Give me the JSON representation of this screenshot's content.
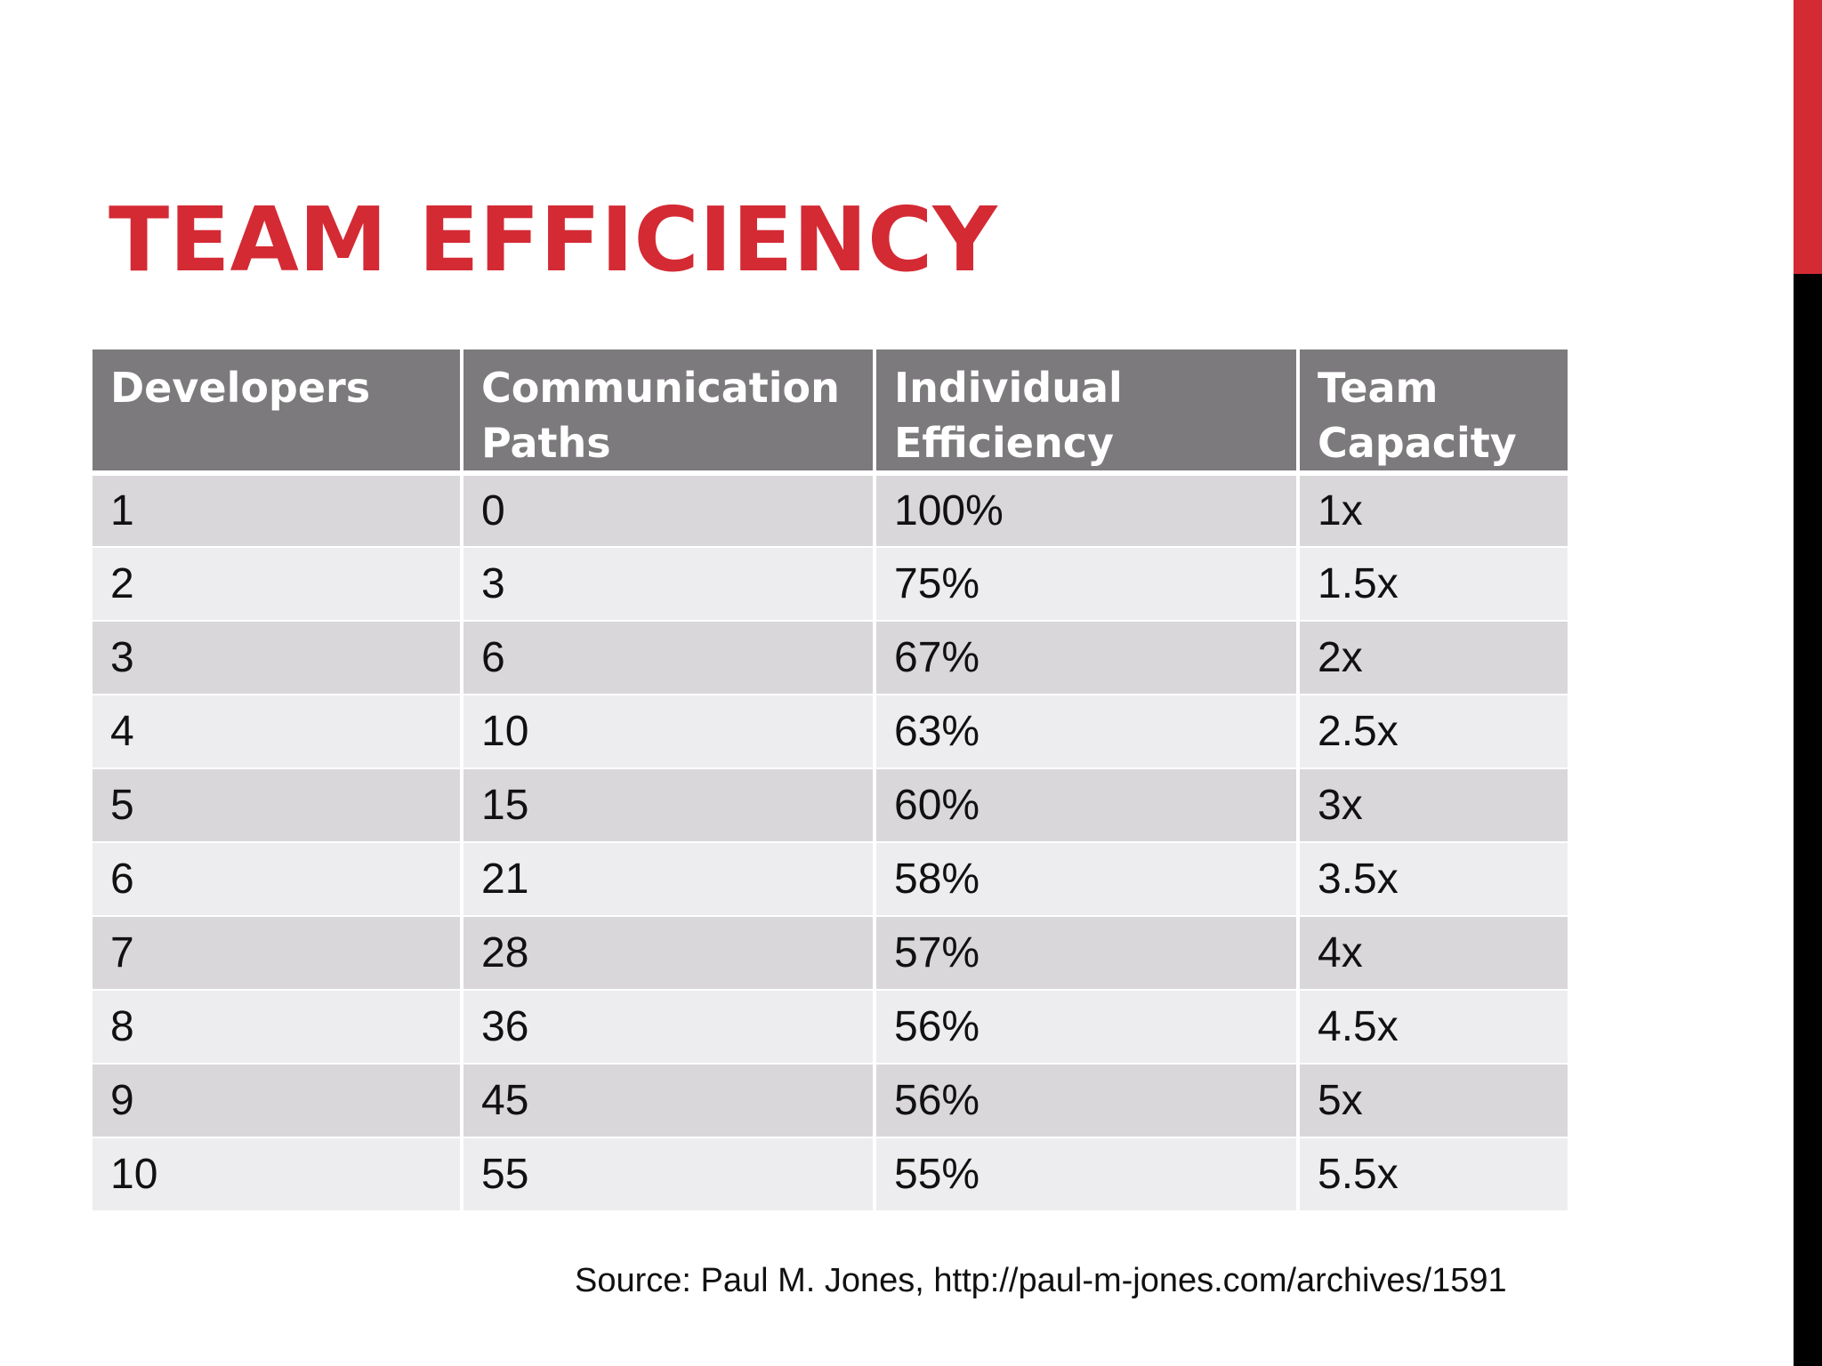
{
  "slide": {
    "title": "TEAM EFFICIENCY",
    "accent_color": "#d42a34",
    "header_color": "#7c7a7c"
  },
  "table": {
    "headers": [
      "Developers",
      "Communication Paths",
      "Individual Efficiency",
      "Team Capacity"
    ],
    "rows": [
      [
        "1",
        "0",
        "100%",
        "1x"
      ],
      [
        "2",
        "3",
        "75%",
        "1.5x"
      ],
      [
        "3",
        "6",
        "67%",
        "2x"
      ],
      [
        "4",
        "10",
        "63%",
        "2.5x"
      ],
      [
        "5",
        "15",
        "60%",
        "3x"
      ],
      [
        "6",
        "21",
        "58%",
        "3.5x"
      ],
      [
        "7",
        "28",
        "57%",
        "4x"
      ],
      [
        "8",
        "36",
        "56%",
        "4.5x"
      ],
      [
        "9",
        "45",
        "56%",
        "5x"
      ],
      [
        "10",
        "55",
        "55%",
        "5.5x"
      ]
    ]
  },
  "source": "Source: Paul M. Jones, http://paul-m-jones.com/archives/1591"
}
